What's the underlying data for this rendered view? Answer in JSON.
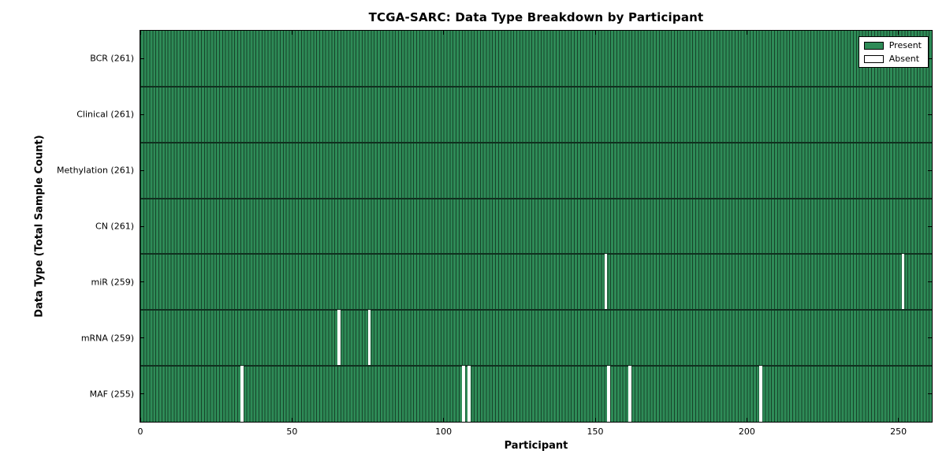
{
  "chart_data": {
    "type": "heatmap",
    "title": "TCGA-SARC: Data Type Breakdown by Participant",
    "xlabel": "Participant",
    "ylabel": "Data Type (Total Sample Count)",
    "x_ticks": [
      0,
      50,
      100,
      150,
      200,
      250
    ],
    "xlim": [
      0,
      261
    ],
    "n_participants": 261,
    "rows": [
      {
        "label": "BCR (261)",
        "data_type": "BCR",
        "present_count": 261,
        "absent_participants": []
      },
      {
        "label": "Clinical (261)",
        "data_type": "Clinical",
        "present_count": 261,
        "absent_participants": []
      },
      {
        "label": "Methylation (261)",
        "data_type": "Methylation",
        "present_count": 261,
        "absent_participants": []
      },
      {
        "label": "CN (261)",
        "data_type": "CN",
        "present_count": 261,
        "absent_participants": []
      },
      {
        "label": "miR (259)",
        "data_type": "miR",
        "present_count": 259,
        "absent_participants": [
          153,
          251
        ]
      },
      {
        "label": "mRNA (259)",
        "data_type": "mRNA",
        "present_count": 259,
        "absent_participants": [
          65,
          75
        ]
      },
      {
        "label": "MAF (255)",
        "data_type": "MAF",
        "present_count": 255,
        "absent_participants": [
          33,
          106,
          108,
          154,
          161,
          204
        ]
      }
    ],
    "legend": [
      {
        "label": "Present",
        "color": "#2e8b57"
      },
      {
        "label": "Absent",
        "color": "#ffffff"
      }
    ],
    "legend_position": "upper right",
    "grid": false,
    "colors": {
      "present": "#2e8b57",
      "absent": "#ffffff",
      "bar_edge": "#17432a",
      "row_divider": "#10301f",
      "axis": "#000000"
    }
  }
}
